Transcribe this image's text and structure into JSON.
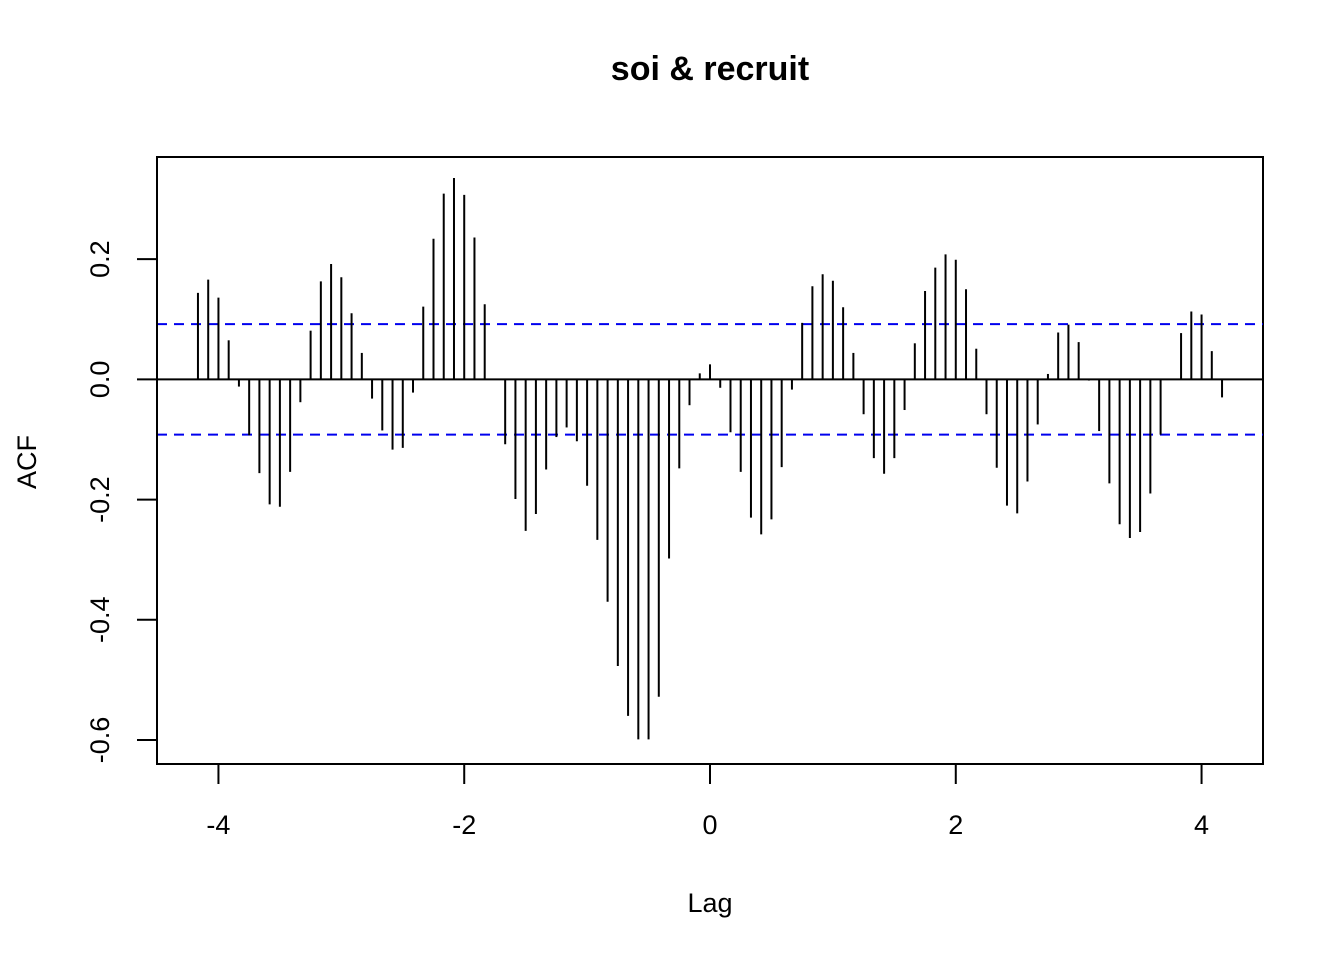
{
  "chart_data": {
    "type": "bar",
    "title": "soi & recruit",
    "xlabel": "Lag",
    "ylabel": "ACF",
    "xlim": [
      -4.5,
      4.5
    ],
    "ylim": [
      -0.64,
      0.37
    ],
    "x_ticks": [
      "-4",
      "-2",
      "0",
      "2",
      "4"
    ],
    "x_tick_values": [
      -4,
      -2,
      0,
      2,
      4
    ],
    "y_ticks": [
      "-0.6",
      "-0.4",
      "-0.2",
      "0.0",
      "0.2"
    ],
    "y_tick_values": [
      -0.6,
      -0.4,
      -0.2,
      0.0,
      0.2
    ],
    "confidence_band": [
      -0.092,
      0.092
    ],
    "lag_step": 0.08333333,
    "lags": [
      -4.1667,
      -4.0833,
      -4.0,
      -3.9167,
      -3.8333,
      -3.75,
      -3.6667,
      -3.5833,
      -3.5,
      -3.4167,
      -3.3333,
      -3.25,
      -3.1667,
      -3.0833,
      -3.0,
      -2.9167,
      -2.8333,
      -2.75,
      -2.6667,
      -2.5833,
      -2.5,
      -2.4167,
      -2.3333,
      -2.25,
      -2.1667,
      -2.0833,
      -2.0,
      -1.9167,
      -1.8333,
      -1.75,
      -1.6667,
      -1.5833,
      -1.5,
      -1.4167,
      -1.3333,
      -1.25,
      -1.1667,
      -1.0833,
      -1.0,
      -0.9167,
      -0.8333,
      -0.75,
      -0.6667,
      -0.5833,
      -0.5,
      -0.4167,
      -0.3333,
      -0.25,
      -0.1667,
      -0.0833,
      0.0,
      0.0833,
      0.1667,
      0.25,
      0.3333,
      0.4167,
      0.5,
      0.5833,
      0.6667,
      0.75,
      0.8333,
      0.9167,
      1.0,
      1.0833,
      1.1667,
      1.25,
      1.3333,
      1.4167,
      1.5,
      1.5833,
      1.6667,
      1.75,
      1.8333,
      1.9167,
      2.0,
      2.0833,
      2.1667,
      2.25,
      2.3333,
      2.4167,
      2.5,
      2.5833,
      2.6667,
      2.75,
      2.8333,
      2.9167,
      3.0,
      3.0833,
      3.1667,
      3.25,
      3.3333,
      3.4167,
      3.5,
      3.5833,
      3.6667,
      3.75,
      3.8333,
      3.9167,
      4.0,
      4.0833,
      4.1667
    ],
    "values": [
      0.144,
      0.166,
      0.136,
      0.065,
      -0.012,
      -0.093,
      -0.156,
      -0.208,
      -0.212,
      -0.154,
      -0.038,
      0.081,
      0.163,
      0.192,
      0.17,
      0.11,
      0.044,
      -0.032,
      -0.085,
      -0.117,
      -0.114,
      -0.022,
      0.121,
      0.234,
      0.309,
      0.335,
      0.307,
      0.236,
      0.125,
      0.001,
      -0.108,
      -0.199,
      -0.252,
      -0.224,
      -0.15,
      -0.096,
      -0.08,
      -0.103,
      -0.177,
      -0.267,
      -0.37,
      -0.477,
      -0.56,
      -0.599,
      -0.599,
      -0.528,
      -0.298,
      -0.148,
      -0.043,
      0.01,
      0.025,
      -0.014,
      -0.088,
      -0.154,
      -0.23,
      -0.258,
      -0.233,
      -0.146,
      -0.017,
      0.094,
      0.155,
      0.175,
      0.164,
      0.12,
      0.044,
      -0.058,
      -0.131,
      -0.157,
      -0.131,
      -0.051,
      0.06,
      0.147,
      0.186,
      0.208,
      0.199,
      0.15,
      0.051,
      -0.058,
      -0.147,
      -0.21,
      -0.223,
      -0.17,
      -0.075,
      0.009,
      0.078,
      0.091,
      0.062,
      -0.002,
      -0.086,
      -0.173,
      -0.241,
      -0.264,
      -0.254,
      -0.19,
      -0.092,
      0.001,
      0.077,
      0.113,
      0.108,
      0.047,
      -0.03
    ]
  }
}
